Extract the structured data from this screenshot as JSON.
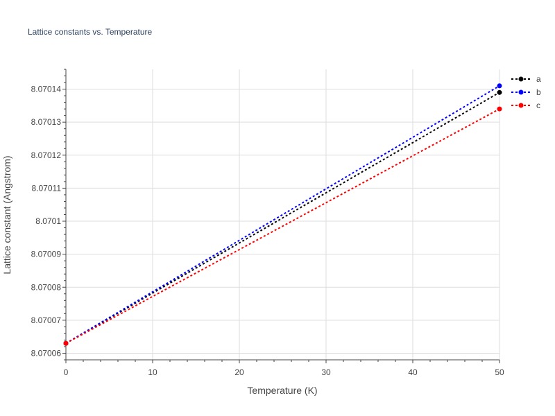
{
  "chart_data": {
    "type": "line",
    "title": "Lattice constants vs. Temperature",
    "xlabel": "Temperature (K)",
    "ylabel": "Lattice constant (Angstrom)",
    "xlim": [
      0,
      50
    ],
    "ylim": [
      8.070058,
      8.070146
    ],
    "xticks": [
      0,
      10,
      20,
      30,
      40,
      50
    ],
    "xtick_labels": [
      "0",
      "10",
      "20",
      "30",
      "40",
      "50"
    ],
    "yticks": [
      8.07006,
      8.07007,
      8.07008,
      8.07009,
      8.0701,
      8.07011,
      8.07012,
      8.07013,
      8.07014
    ],
    "ytick_labels": [
      "8.07006",
      "8.07007",
      "8.07008",
      "8.07009",
      "8.0701",
      "8.07011",
      "8.07012",
      "8.07013",
      "8.07014"
    ],
    "grid": true,
    "legend_position": "top-right",
    "x": [
      0,
      50
    ],
    "series": [
      {
        "name": "a",
        "color": "#000000",
        "values": [
          8.070063,
          8.070139
        ]
      },
      {
        "name": "b",
        "color": "#0000ff",
        "values": [
          8.070063,
          8.070141
        ]
      },
      {
        "name": "c",
        "color": "#ff0000",
        "values": [
          8.070063,
          8.070134
        ]
      }
    ]
  }
}
